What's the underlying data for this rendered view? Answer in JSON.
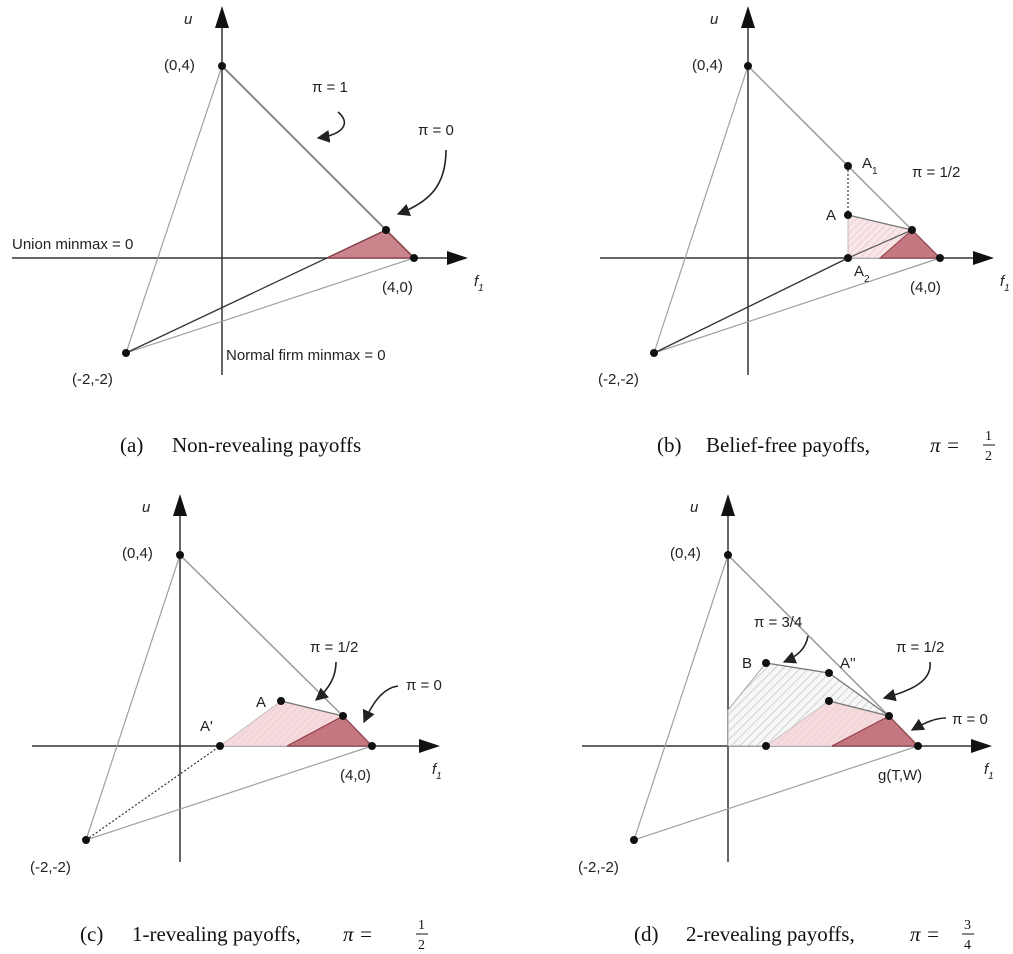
{
  "colors": {
    "axis": "#333333",
    "thin_line": "#9a9a9a",
    "frontier": "#8a8a8a",
    "dark_fill": "#b35a64",
    "mid_fill": "#e8b8bc",
    "light_fill": "#f6e3e4",
    "hatch": "#cfcfcf"
  },
  "a": {
    "caption_tag": "(a)",
    "caption_text": "Non-revealing payoffs",
    "axis_u": "u",
    "axis_f": "f",
    "axis_f_sub": "1",
    "pt_04": "(0,4)",
    "pt_40": "(4,0)",
    "pt_m2m2": "(-2,-2)",
    "pi1": "π = 1",
    "pi0": "π = 0",
    "union_minmax": "Union minmax = 0",
    "firm_minmax": "Normal firm minmax = 0"
  },
  "b": {
    "caption_tag": "(b)",
    "caption_text": "Belief-free payoffs,",
    "caption_pi": "π =",
    "frac_num": "1",
    "frac_den": "2",
    "axis_u": "u",
    "axis_f": "f",
    "axis_f_sub": "1",
    "pt_04": "(0,4)",
    "pt_40": "(4,0)",
    "pt_m2m2": "(-2,-2)",
    "A": "A",
    "A1": "A",
    "A1_sub": "1",
    "A2": "A",
    "A2_sub": "2",
    "pi_half": "π = 1/2"
  },
  "c": {
    "caption_tag": "(c)",
    "caption_text": "1-revealing payoffs,",
    "caption_pi": "π =",
    "frac_num": "1",
    "frac_den": "2",
    "axis_u": "u",
    "axis_f": "f",
    "axis_f_sub": "1",
    "pt_04": "(0,4)",
    "pt_40": "(4,0)",
    "pt_m2m2": "(-2,-2)",
    "A": "A",
    "A_prime": "A'",
    "pi_half": "π = 1/2",
    "pi0": "π = 0"
  },
  "d": {
    "caption_tag": "(d)",
    "caption_text": "2-revealing payoffs,",
    "caption_pi": "π =",
    "frac_num": "3",
    "frac_den": "4",
    "axis_u": "u",
    "axis_f": "f",
    "axis_f_sub": "1",
    "pt_04": "(0,4)",
    "pt_m2m2": "(-2,-2)",
    "gTW": "g(T,W)",
    "B": "B",
    "A_dprime": "A''",
    "pi_34": "π = 3/4",
    "pi_half": "π = 1/2",
    "pi0": "π = 0"
  }
}
